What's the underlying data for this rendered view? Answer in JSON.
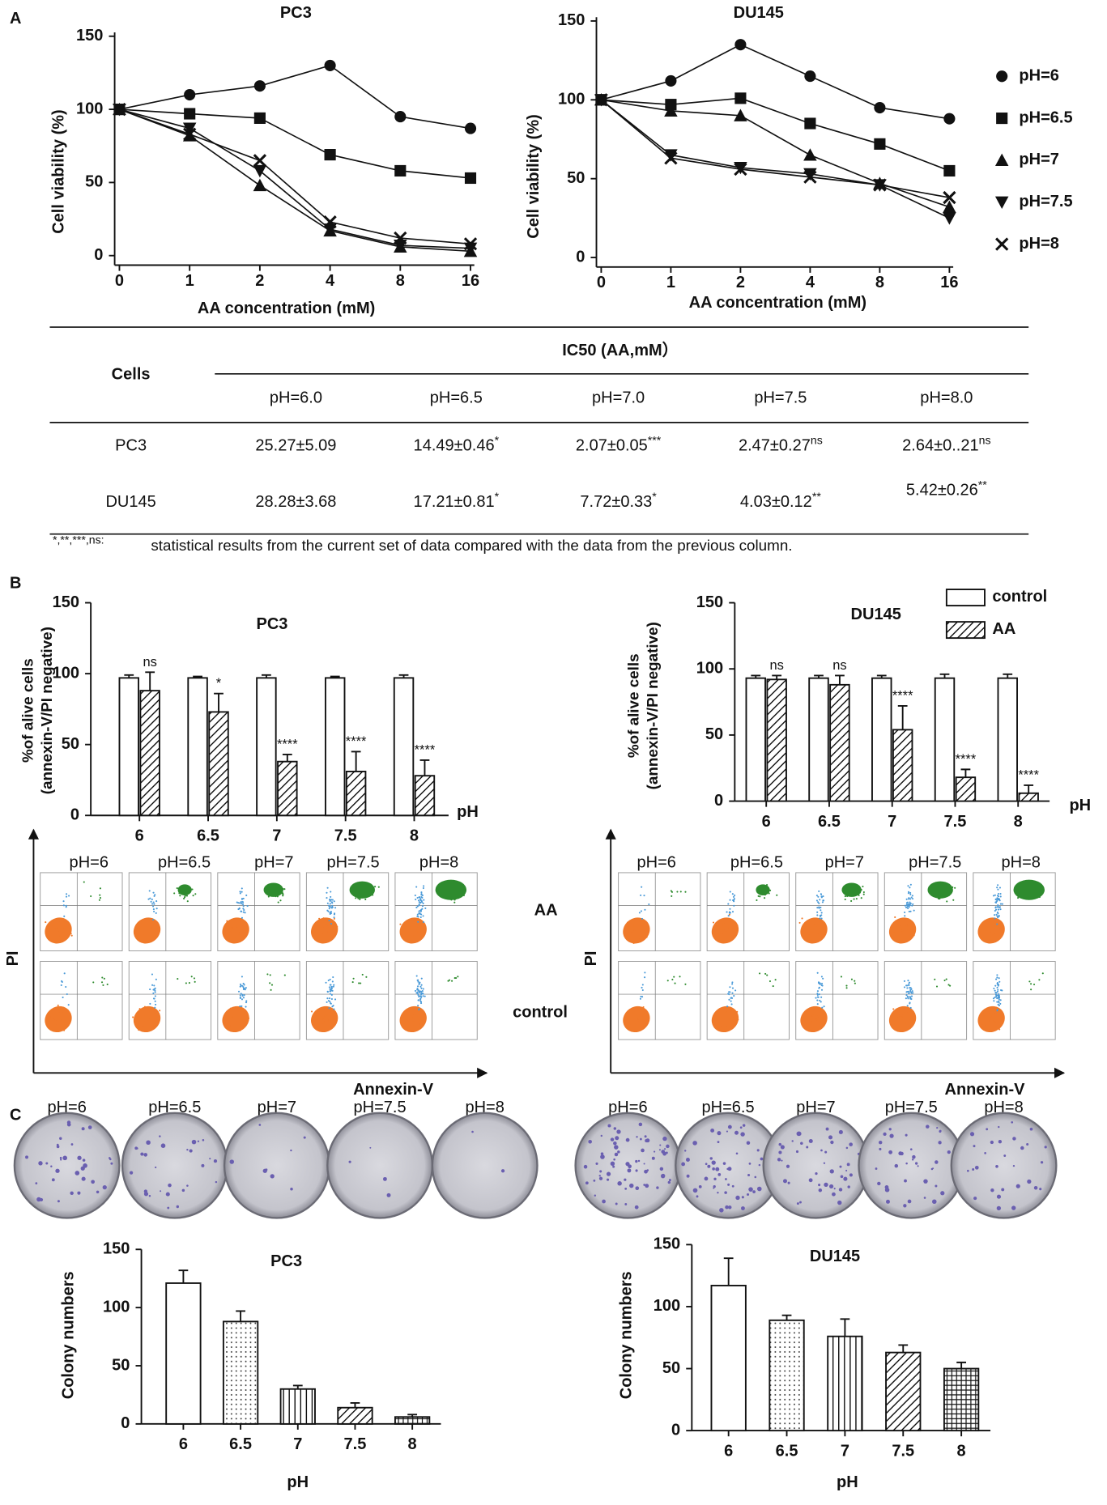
{
  "figure_labels": [
    "A",
    "B",
    "C"
  ],
  "chart_data": [
    {
      "type": "line",
      "title": "PC3",
      "x_label": "AA concentration (mM)",
      "y_label": "Cell viability (%)",
      "categories": [
        "0",
        "1",
        "2",
        "4",
        "8",
        "16"
      ],
      "ylim": [
        0,
        150
      ],
      "yticks": [
        0,
        50,
        100,
        150
      ],
      "series": [
        {
          "marker": "circle",
          "color": "#111111",
          "values": [
            100,
            110,
            116,
            130,
            95,
            87
          ]
        },
        {
          "marker": "square",
          "color": "#111111",
          "values": [
            100,
            97,
            94,
            69,
            58,
            53
          ]
        },
        {
          "marker": "triangle",
          "color": "#111111",
          "values": [
            100,
            82,
            48,
            17,
            6,
            3
          ]
        },
        {
          "marker": "triangle-down",
          "color": "#111111",
          "values": [
            100,
            87,
            58,
            18,
            7,
            5
          ]
        },
        {
          "marker": "x",
          "color": "#111111",
          "values": [
            100,
            83,
            65,
            23,
            12,
            8
          ]
        }
      ]
    },
    {
      "type": "line",
      "title": "DU145",
      "x_label": "AA concentration (mM)",
      "y_label": "Cell viability (%)",
      "categories": [
        "0",
        "1",
        "2",
        "4",
        "8",
        "16"
      ],
      "ylim": [
        0,
        150
      ],
      "yticks": [
        0,
        50,
        100,
        150
      ],
      "series": [
        {
          "name": "pH=6",
          "marker": "circle",
          "color": "#111111",
          "values": [
            100,
            112,
            135,
            115,
            95,
            88
          ]
        },
        {
          "name": "pH=6.5",
          "marker": "square",
          "color": "#111111",
          "values": [
            100,
            97,
            101,
            85,
            72,
            55
          ]
        },
        {
          "name": "pH=7",
          "marker": "triangle",
          "color": "#111111",
          "values": [
            100,
            93,
            90,
            65,
            47,
            32
          ]
        },
        {
          "name": "pH=7.5",
          "marker": "triangle-down",
          "color": "#111111",
          "values": [
            100,
            65,
            57,
            53,
            46,
            25
          ]
        },
        {
          "name": "pH=8",
          "marker": "x",
          "color": "#111111",
          "values": [
            100,
            63,
            56,
            51,
            46,
            38
          ]
        }
      ]
    },
    {
      "type": "bar",
      "title": "PC3",
      "x_label": "pH",
      "y_label": [
        "%of alive cells",
        "(annexin-V/PI negative)"
      ],
      "categories": [
        "6",
        "6.5",
        "7",
        "7.5",
        "8"
      ],
      "ylim": [
        0,
        150
      ],
      "yticks": [
        0,
        50,
        100,
        150
      ],
      "series": [
        {
          "pattern": "white",
          "values": [
            97,
            97,
            97,
            97,
            97
          ],
          "errors": [
            2,
            1,
            2,
            1,
            2
          ]
        },
        {
          "pattern": "hatch",
          "values": [
            88,
            73,
            38,
            31,
            28
          ],
          "errors": [
            13,
            13,
            5,
            14,
            11
          ],
          "annotations": [
            "ns",
            "*",
            "****",
            "****",
            "****"
          ]
        }
      ]
    },
    {
      "type": "bar",
      "title": "DU145",
      "x_label": "pH",
      "y_label": [
        "%of alive cells",
        "(annexin-V/PI negative)"
      ],
      "categories": [
        "6",
        "6.5",
        "7",
        "7.5",
        "8"
      ],
      "ylim": [
        0,
        150
      ],
      "yticks": [
        0,
        50,
        100,
        150
      ],
      "series": [
        {
          "name": "control",
          "pattern": "white",
          "values": [
            93,
            93,
            93,
            93,
            93
          ],
          "errors": [
            2,
            2,
            2,
            3,
            3
          ]
        },
        {
          "name": "AA",
          "pattern": "hatch",
          "values": [
            92,
            88,
            54,
            18,
            6
          ],
          "errors": [
            3,
            7,
            18,
            6,
            6
          ],
          "annotations": [
            "ns",
            "ns",
            "****",
            "****",
            "****"
          ]
        }
      ]
    },
    {
      "type": "bar",
      "title": "PC3",
      "x_label": "pH",
      "y_label": "Colony numbers",
      "categories": [
        "6",
        "6.5",
        "7",
        "7.5",
        "8"
      ],
      "ylim": [
        0,
        150
      ],
      "yticks": [
        0,
        50,
        100,
        150
      ],
      "values": [
        121,
        88,
        30,
        14,
        6
      ],
      "errors": [
        11,
        9,
        3,
        4,
        2
      ],
      "patterns": [
        "white",
        "dots",
        "vlines",
        "hatch",
        "cross"
      ]
    },
    {
      "type": "bar",
      "title": "DU145",
      "x_label": "pH",
      "y_label": "Colony numbers",
      "categories": [
        "6",
        "6.5",
        "7",
        "7.5",
        "8"
      ],
      "ylim": [
        0,
        150
      ],
      "yticks": [
        0,
        50,
        100,
        150
      ],
      "values": [
        117,
        89,
        76,
        63,
        50
      ],
      "errors": [
        22,
        4,
        14,
        6,
        5
      ],
      "patterns": [
        "white",
        "dots",
        "vlines",
        "hatch",
        "cross"
      ]
    }
  ],
  "table": {
    "title": "IC50 (AA,mM）",
    "row_header": "Cells",
    "columns": [
      "pH=6.0",
      "pH=6.5",
      "pH=7.0",
      "pH=7.5",
      "pH=8.0"
    ],
    "rows": [
      {
        "label": "PC3",
        "cells": [
          {
            "text": "25.27±5.09"
          },
          {
            "text": "14.49±0.46",
            "sup": "*"
          },
          {
            "text": "2.07±0.05",
            "sup": "***"
          },
          {
            "text": "2.47±0.27",
            "sup": "ns"
          },
          {
            "text": "2.64±0..21",
            "sup": "ns"
          }
        ]
      },
      {
        "label": "DU145",
        "cells": [
          {
            "text": "28.28±3.68"
          },
          {
            "text": "17.21±0.81",
            "sup": "*"
          },
          {
            "text": "7.72±0.33",
            "sup": "*"
          },
          {
            "text": "4.03±0.12",
            "sup": "**"
          },
          {
            "text": "5.42±0.26",
            "sup": "**"
          }
        ]
      }
    ],
    "footnote": {
      "marks": "*,**,***,ns:",
      "text": "statistical results from the current set of data compared with the data from the previous column."
    }
  },
  "flow": {
    "pc3": {
      "conditions": [
        "pH=6",
        "pH=6.5",
        "pH=7",
        "pH=7.5",
        "pH=8"
      ],
      "y_axis": "PI",
      "x_axis": "Annexin-V"
    },
    "du145": {
      "conditions": [
        "pH=6",
        "pH=6.5",
        "pH=7",
        "pH=7.5",
        "pH=8"
      ],
      "y_axis": "PI",
      "x_axis": "Annexin-V"
    },
    "row_labels": [
      "AA",
      "control"
    ]
  },
  "colony_plates": {
    "pc3": [
      "pH=6",
      "pH=6.5",
      "pH=7",
      "pH=7.5",
      "pH=8"
    ],
    "du145": [
      "pH=6",
      "pH=6.5",
      "pH=7",
      "pH=7.5",
      "pH=8"
    ]
  }
}
